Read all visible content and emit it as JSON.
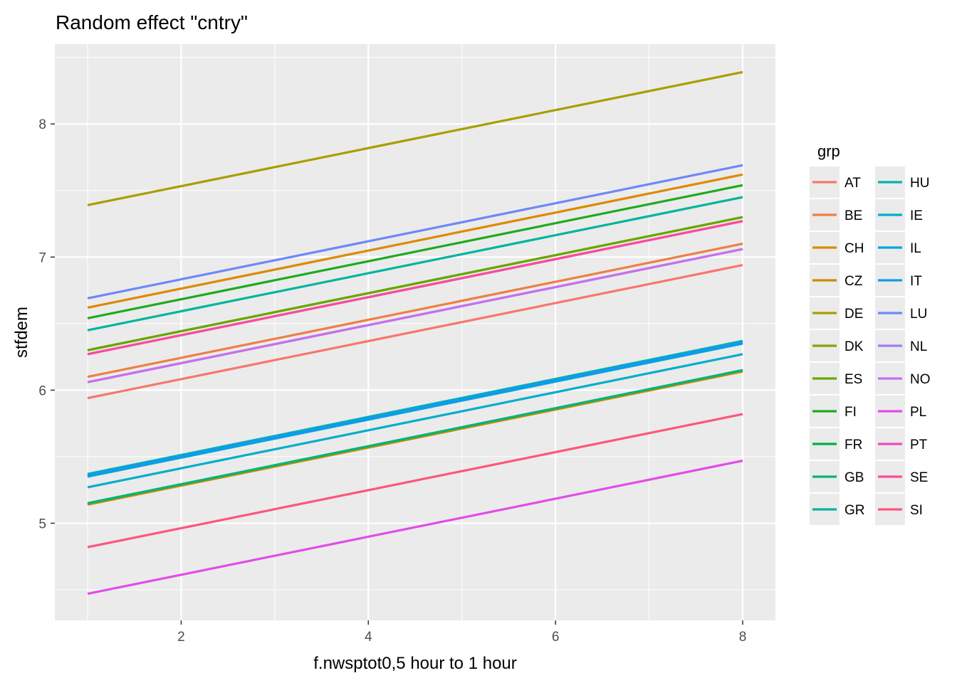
{
  "chart_data": {
    "type": "line",
    "title": "Random effect \"cntry\"",
    "xlabel": "f.nwsptot0,5 hour to 1 hour",
    "ylabel": "stfdem",
    "xlim": [
      0.65,
      8.35
    ],
    "ylim": [
      4.27,
      8.6
    ],
    "x_ticks": [
      2,
      4,
      6,
      8
    ],
    "y_ticks": [
      5,
      6,
      7,
      8
    ],
    "x_tick_labels": [
      "2",
      "4",
      "6",
      "8"
    ],
    "y_tick_labels": [
      "5",
      "6",
      "7",
      "8"
    ],
    "grid": true,
    "legend": {
      "title": "grp",
      "placement": "right"
    },
    "x": [
      1,
      8
    ],
    "series": [
      {
        "name": "AT",
        "color": "#F8766D",
        "values": [
          5.94,
          6.94
        ]
      },
      {
        "name": "BE",
        "color": "#EE7F45",
        "values": [
          6.1,
          7.1
        ]
      },
      {
        "name": "CH",
        "color": "#DD8A00",
        "values": [
          6.62,
          7.62
        ]
      },
      {
        "name": "CZ",
        "color": "#C88C00",
        "values": [
          5.14,
          6.14
        ]
      },
      {
        "name": "DE",
        "color": "#A89E00",
        "values": [
          7.39,
          8.39
        ]
      },
      {
        "name": "DK",
        "color": "#8CA300",
        "values": [
          6.3,
          7.3
        ]
      },
      {
        "name": "ES",
        "color": "#66A800",
        "values": [
          6.3,
          7.3
        ]
      },
      {
        "name": "FI",
        "color": "#1EAA1E",
        "values": [
          6.54,
          7.54
        ]
      },
      {
        "name": "FR",
        "color": "#00B047",
        "values": [
          5.15,
          6.15
        ]
      },
      {
        "name": "GB",
        "color": "#00B47A",
        "values": [
          5.15,
          6.15
        ]
      },
      {
        "name": "GR",
        "color": "#00B59C",
        "values": [
          6.45,
          7.45
        ]
      },
      {
        "name": "HU",
        "color": "#00B2B0",
        "values": [
          5.37,
          6.37
        ]
      },
      {
        "name": "IE",
        "color": "#00AECD",
        "values": [
          5.27,
          6.27
        ]
      },
      {
        "name": "IL",
        "color": "#00A5E0",
        "values": [
          5.35,
          6.35
        ]
      },
      {
        "name": "IT",
        "color": "#1598F0",
        "values": [
          5.36,
          6.36
        ]
      },
      {
        "name": "LU",
        "color": "#6F87F8",
        "values": [
          6.69,
          7.69
        ]
      },
      {
        "name": "NL",
        "color": "#A37BF5",
        "values": [
          6.06,
          7.06
        ]
      },
      {
        "name": "NO",
        "color": "#C670EE",
        "values": [
          6.06,
          7.06
        ]
      },
      {
        "name": "PL",
        "color": "#E14CE8",
        "values": [
          4.47,
          5.47
        ]
      },
      {
        "name": "PT",
        "color": "#F049C6",
        "values": [
          6.27,
          7.27
        ]
      },
      {
        "name": "SE",
        "color": "#FA4B9C",
        "values": [
          6.27,
          7.27
        ]
      },
      {
        "name": "SI",
        "color": "#FC567C",
        "values": [
          4.82,
          5.82
        ]
      }
    ]
  }
}
